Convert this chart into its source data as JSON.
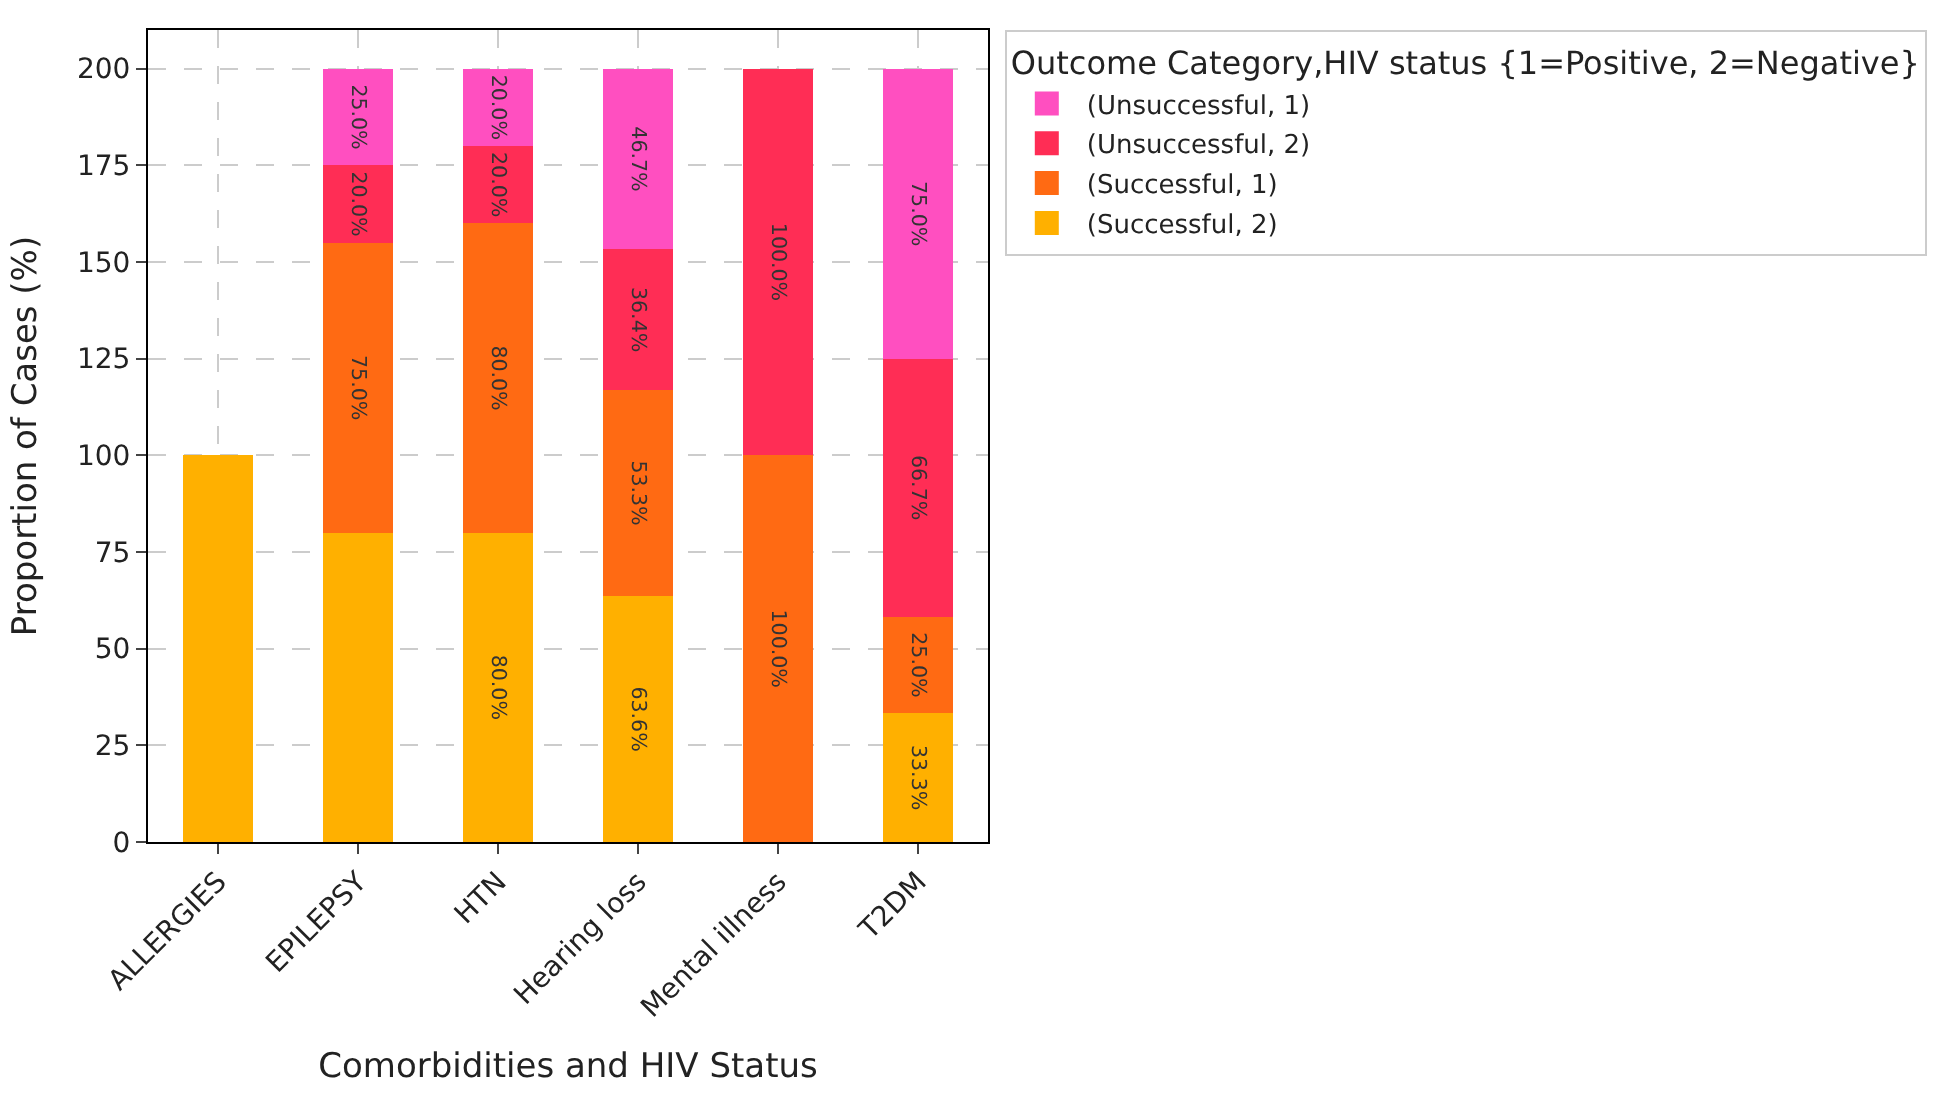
{
  "chart_data": {
    "type": "bar",
    "stacked": true,
    "xlabel": "Comorbidities and HIV Status",
    "ylabel": "Proportion of Cases (%)",
    "legend_title": "Outcome Category,HIV status {1=Positive, 2=Negative}",
    "categories": [
      "ALLERGIES",
      "EPILEPSY",
      "HTN",
      "Hearing loss",
      "Mental illness",
      "T2DM"
    ],
    "series": [
      {
        "name": "(Successful, 2)",
        "color": "#ffb000",
        "values": [
          100,
          80,
          80,
          63.6,
          0,
          33.3
        ],
        "value_labels": [
          null,
          null,
          "80.0%",
          "63.6%",
          null,
          "33.3%"
        ]
      },
      {
        "name": "(Successful, 1)",
        "color": "#ff6a13",
        "values": [
          0,
          75,
          80,
          53.3,
          100,
          25.0
        ],
        "value_labels": [
          null,
          "75.0%",
          "80.0%",
          "53.3%",
          "100.0%",
          "25.0%"
        ]
      },
      {
        "name": "(Unsuccessful, 2)",
        "color": "#ff2d55",
        "values": [
          0,
          20,
          20,
          36.4,
          100,
          66.7
        ],
        "value_labels": [
          null,
          "20.0%",
          "20.0%",
          "36.4%",
          "100.0%",
          "66.7%"
        ]
      },
      {
        "name": "(Unsuccessful, 1)",
        "color": "#ff4fc0",
        "values": [
          0,
          25,
          20,
          46.7,
          0,
          75.0
        ],
        "value_labels": [
          null,
          "25.0%",
          "20.0%",
          "46.7%",
          null,
          "75.0%"
        ]
      }
    ],
    "ylim": [
      0,
      210
    ],
    "yticks": [
      0,
      25,
      50,
      75,
      100,
      125,
      150,
      175,
      200
    ],
    "grid": true,
    "legend": "right"
  }
}
